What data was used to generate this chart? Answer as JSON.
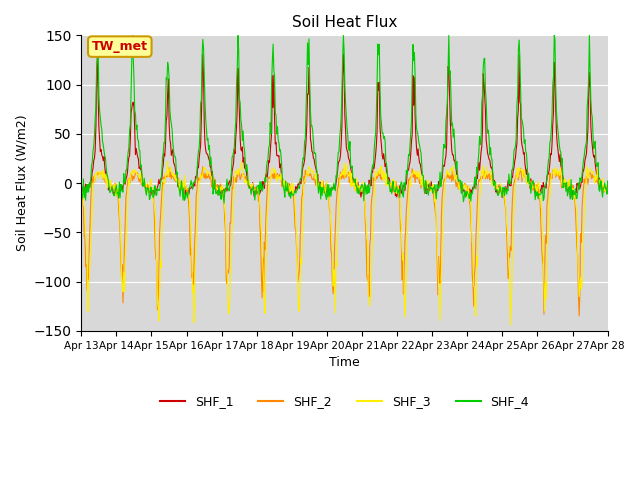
{
  "title": "Soil Heat Flux",
  "xlabel": "Time",
  "ylabel": "Soil Heat Flux (W/m2)",
  "ylim": [
    -150,
    150
  ],
  "plot_bg_color": "#d8d8d8",
  "colors": {
    "SHF_1": "#cc0000",
    "SHF_2": "#ff8800",
    "SHF_3": "#ffee00",
    "SHF_4": "#00cc00"
  },
  "legend_label": "TW_met",
  "legend_box_color": "#ffff99",
  "legend_box_border": "#cc9900",
  "x_tick_labels": [
    "Apr 13",
    "Apr 14",
    "Apr 15",
    "Apr 16",
    "Apr 17",
    "Apr 18",
    "Apr 19",
    "Apr 20",
    "Apr 21",
    "Apr 22",
    "Apr 23",
    "Apr 24",
    "Apr 25",
    "Apr 26",
    "Apr 27",
    "Apr 28"
  ],
  "n_days": 15,
  "pts_per_day": 48,
  "seed": 42
}
